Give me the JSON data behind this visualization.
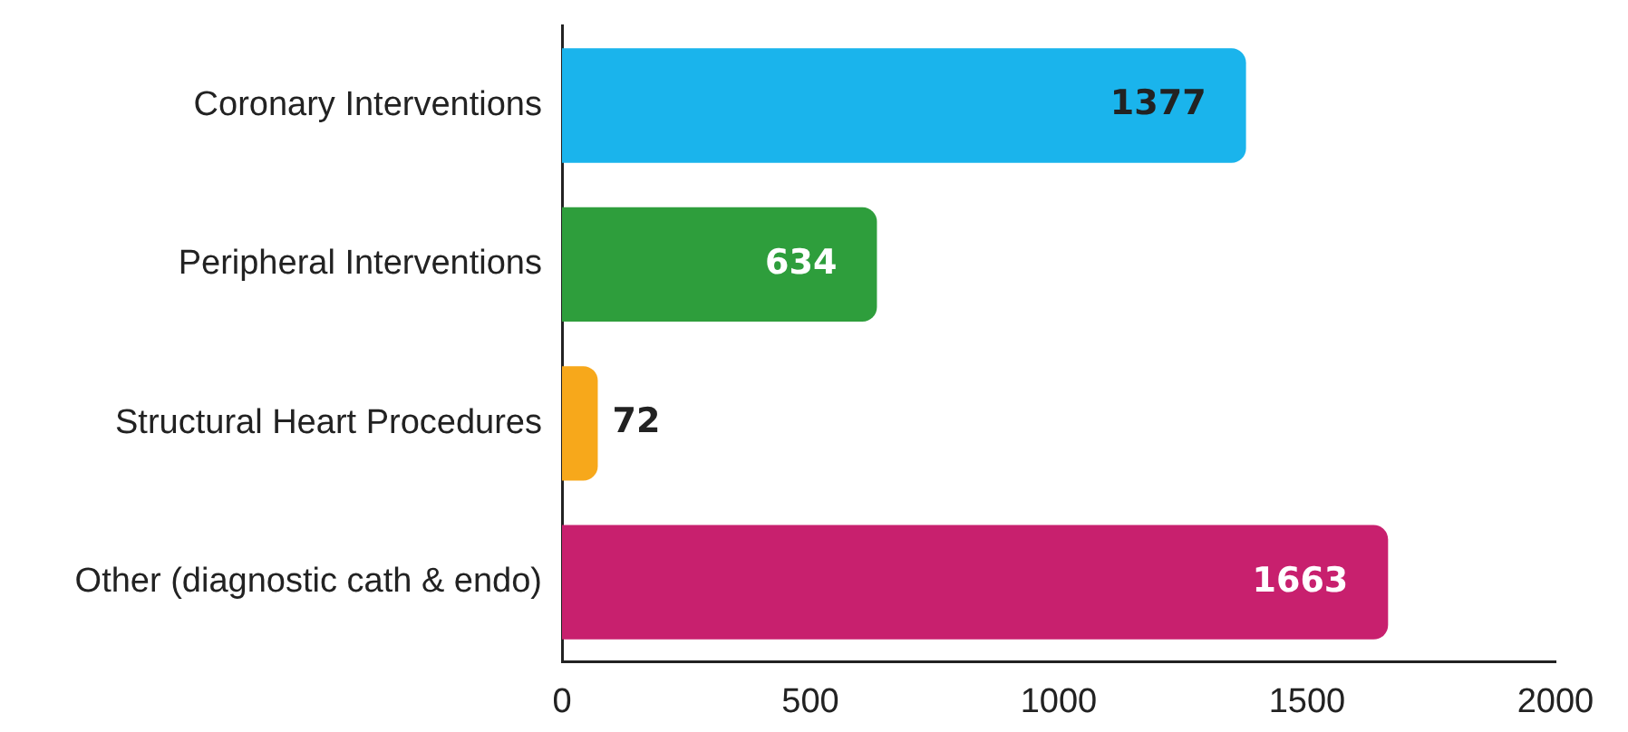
{
  "chart_data": {
    "type": "bar",
    "orientation": "horizontal",
    "categories": [
      "Coronary Interventions",
      "Peripheral Interventions",
      "Structural Heart Procedures",
      "Other (diagnostic cath & endo)"
    ],
    "values": [
      1377,
      634,
      72,
      1663
    ],
    "colors": [
      "#1ab4ec",
      "#2e9e3c",
      "#f7a81b",
      "#c8206e"
    ],
    "xlim": [
      0,
      2000
    ],
    "xticks": [
      0,
      500,
      1000,
      1500,
      2000
    ],
    "grid": false,
    "legend": false,
    "data_labels": true
  }
}
